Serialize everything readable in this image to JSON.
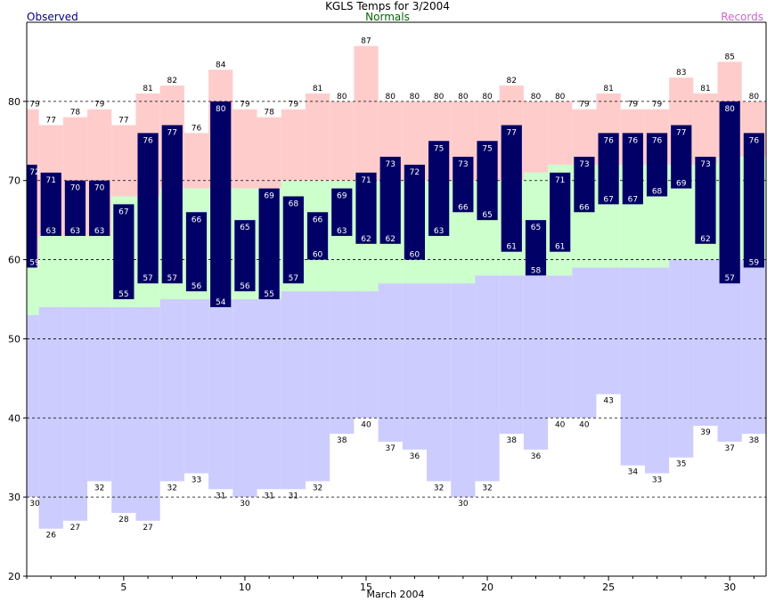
{
  "chart_data": {
    "type": "bar",
    "title": "KGLS Temps for 3/2004",
    "xlabel": "March 2004",
    "ylabel": "",
    "ylim": [
      20,
      90
    ],
    "yticks": [
      20,
      30,
      40,
      50,
      60,
      70,
      80
    ],
    "xticks": [
      5,
      10,
      15,
      20,
      25,
      30
    ],
    "grid": "dashed horizontal lines at 30, 40, 50, 60, 70, 80",
    "legend": {
      "observed": "Observed",
      "normals": "Normals",
      "records": "Records"
    },
    "days": [
      1,
      2,
      3,
      4,
      5,
      6,
      7,
      8,
      9,
      10,
      11,
      12,
      13,
      14,
      15,
      16,
      17,
      18,
      19,
      20,
      21,
      22,
      23,
      24,
      25,
      26,
      27,
      28,
      29,
      30,
      31
    ],
    "series": [
      {
        "name": "Observed High",
        "values": [
          72,
          71,
          70,
          70,
          67,
          76,
          77,
          66,
          80,
          65,
          69,
          68,
          66,
          69,
          71,
          73,
          72,
          75,
          73,
          75,
          77,
          65,
          71,
          73,
          76,
          76,
          76,
          77,
          73,
          80,
          76
        ]
      },
      {
        "name": "Observed Low",
        "values": [
          59,
          63,
          63,
          63,
          55,
          57,
          57,
          56,
          54,
          56,
          55,
          57,
          60,
          63,
          62,
          62,
          60,
          63,
          66,
          65,
          61,
          58,
          61,
          66,
          67,
          67,
          68,
          69,
          62,
          57,
          59
        ]
      },
      {
        "name": "Record High",
        "values": [
          79,
          77,
          78,
          79,
          77,
          81,
          82,
          76,
          84,
          79,
          78,
          79,
          81,
          80,
          87,
          80,
          80,
          80,
          80,
          80,
          82,
          80,
          80,
          79,
          81,
          79,
          79,
          83,
          81,
          85,
          80
        ]
      },
      {
        "name": "Record Low",
        "values": [
          30,
          26,
          27,
          32,
          28,
          27,
          32,
          33,
          31,
          30,
          31,
          31,
          32,
          38,
          40,
          37,
          36,
          32,
          30,
          32,
          38,
          36,
          40,
          40,
          43,
          34,
          33,
          35,
          39,
          37,
          38
        ]
      },
      {
        "name": "Normal High",
        "values": [
          59,
          63,
          63,
          63,
          68,
          68,
          69,
          69,
          69,
          69,
          69,
          70,
          70,
          70,
          70,
          70,
          70,
          70,
          70,
          70,
          70,
          71,
          72,
          72,
          72,
          72,
          72,
          72,
          72,
          73,
          73
        ]
      },
      {
        "name": "Normal Low",
        "values": [
          53,
          54,
          54,
          54,
          54,
          54,
          55,
          55,
          55,
          55,
          55,
          56,
          56,
          56,
          56,
          57,
          57,
          57,
          57,
          58,
          58,
          58,
          58,
          59,
          59,
          59,
          59,
          60,
          60,
          60,
          60
        ]
      }
    ],
    "colors": {
      "observed": "#000066",
      "observed_label": "#ffffff",
      "record_high_fill": "#ffcccc",
      "normal_fill": "#ccffcc",
      "record_low_fill": "#ccccff",
      "grid": "#000000",
      "legend_observed": "#000080",
      "legend_normals": "#006600",
      "legend_records": "#cc66cc"
    }
  }
}
